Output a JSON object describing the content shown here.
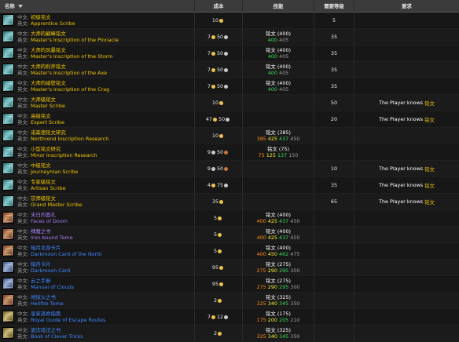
{
  "headers": {
    "name": "名称",
    "cost": "成本",
    "skill": "技能",
    "level": "需要等级",
    "requirements": "要求"
  },
  "labels": {
    "cn": "中文:",
    "en": "英文:"
  },
  "rows": [
    {
      "icon": "scroll-icon",
      "cn": "初级铭文",
      "en": "Apprentice Scribe",
      "color": "yellow",
      "cost": {
        "g": "10"
      },
      "level": "5"
    },
    {
      "icon": "scroll-icon",
      "cn": "大师的巅峰铭文",
      "en": "Master's Inscription of the Pinnacle",
      "color": "yellow",
      "cost": {
        "g": "7",
        "s": "50"
      },
      "skill": {
        "name": "铭文 (400)",
        "vals": [
          "400",
          "405"
        ]
      },
      "level": "35"
    },
    {
      "icon": "scroll-icon",
      "cn": "大师的风暴铭文",
      "en": "Master's Inscription of the Storm",
      "color": "yellow",
      "cost": {
        "g": "7",
        "s": "50"
      },
      "skill": {
        "name": "铭文 (400)",
        "vals": [
          "400",
          "405"
        ]
      },
      "level": "35"
    },
    {
      "icon": "scroll-icon",
      "cn": "大师的利斧铭文",
      "en": "Master's Inscription of the Axe",
      "color": "yellow",
      "cost": {
        "g": "7",
        "s": "50"
      },
      "skill": {
        "name": "铭文 (400)",
        "vals": [
          "400",
          "405"
        ]
      },
      "level": "35"
    },
    {
      "icon": "scroll-icon",
      "cn": "大师的峭壁铭文",
      "en": "Master's Inscription of the Crag",
      "color": "yellow",
      "cost": {
        "g": "7",
        "s": "50"
      },
      "skill": {
        "name": "铭文 (400)",
        "vals": [
          "400",
          "405"
        ]
      },
      "level": "35"
    },
    {
      "icon": "scroll-icon",
      "cn": "大师级铭文",
      "en": "Master Scribe",
      "color": "yellow",
      "cost": {
        "g": "10"
      },
      "level": "50",
      "req": {
        "k": "The Player knows",
        "v": "铭文"
      }
    },
    {
      "icon": "scroll-icon",
      "cn": "高级铭文",
      "en": "Expert Scribe",
      "color": "yellow",
      "cost": {
        "g": "47",
        "s": "50"
      },
      "level": "20",
      "req": {
        "k": "The Player knows",
        "v": "铭文"
      }
    },
    {
      "icon": "scroll-icon",
      "cn": "诺森德铭文研究",
      "en": "Northrend Inscription Research",
      "color": "yellow",
      "cost": {
        "g": "10"
      },
      "skill": {
        "name": "铭文 (385)",
        "vals": [
          "385",
          "425",
          "437",
          "450"
        ]
      }
    },
    {
      "icon": "scroll-icon",
      "cn": "小型铭文研究",
      "en": "Minor Inscription Research",
      "color": "yellow",
      "cost": {
        "s": "9",
        "c": "50"
      },
      "skill": {
        "name": "铭文 (75)",
        "vals": [
          "75",
          "125",
          "137",
          "150"
        ]
      }
    },
    {
      "icon": "scroll-icon",
      "cn": "中级铭文",
      "en": "Journeyman Scribe",
      "color": "yellow",
      "cost": {
        "s": "9",
        "c": "50"
      },
      "level": "10",
      "req": {
        "k": "The Player knows",
        "v": "铭文"
      }
    },
    {
      "icon": "scroll-icon",
      "cn": "专家级铭文",
      "en": "Artisan Scribe",
      "color": "yellow",
      "cost": {
        "g": "4",
        "s": "75"
      },
      "level": "35",
      "req": {
        "k": "The Player knows",
        "v": "铭文"
      }
    },
    {
      "icon": "scroll-icon",
      "cn": "宗师级铭文",
      "en": "Grand Master Scribe",
      "color": "yellow",
      "cost": {
        "g": "35"
      },
      "level": "65",
      "req": {
        "k": "The Player knows",
        "v": "铭文"
      }
    },
    {
      "icon": "book-icon",
      "iconStyle": "book",
      "cn": "末日的面孔",
      "en": "Faces of Doom",
      "color": "purple",
      "cost": {
        "g": "5"
      },
      "skill": {
        "name": "铭文 (400)",
        "vals": [
          "400",
          "425",
          "437",
          "450"
        ]
      }
    },
    {
      "icon": "book-icon",
      "iconStyle": "book",
      "cn": "缚魔之书",
      "en": "Iron-bound Tome",
      "color": "purple",
      "cost": {
        "g": "5"
      },
      "skill": {
        "name": "铭文 (400)",
        "vals": [
          "400",
          "425",
          "437",
          "450"
        ]
      }
    },
    {
      "icon": "card-icon",
      "iconStyle": "book",
      "cn": "暗月北部卡片",
      "en": "Darkmoon Card of the North",
      "color": "blue",
      "cost": {
        "g": "5"
      },
      "skill": {
        "name": "铭文 (400)",
        "vals": [
          "400",
          "450",
          "462",
          "475"
        ]
      }
    },
    {
      "icon": "card-icon",
      "iconStyle": "book2",
      "cn": "暗月卡片",
      "en": "Darkmoon Card",
      "color": "blue",
      "cost": {
        "g": "95"
      },
      "skill": {
        "name": "铭文 (275)",
        "vals": [
          "275",
          "290",
          "295",
          "300"
        ]
      }
    },
    {
      "icon": "book-icon",
      "iconStyle": "book2",
      "cn": "云之手册",
      "en": "Manual of Clouds",
      "color": "blue",
      "cost": {
        "g": "95"
      },
      "skill": {
        "name": "铭文 (275)",
        "vals": [
          "275",
          "290",
          "295",
          "300"
        ]
      }
    },
    {
      "icon": "book-icon",
      "iconStyle": "book",
      "cn": "地狱火之书",
      "en": "Hellfire Tome",
      "color": "blue",
      "cost": {
        "g": "2"
      },
      "skill": {
        "name": "铭文 (325)",
        "vals": [
          "325",
          "340",
          "345",
          "350"
        ]
      }
    },
    {
      "icon": "book-icon",
      "iconStyle": "book3",
      "cn": "皇家逃命指南",
      "en": "Royal Guide of Escape Routes",
      "color": "blue",
      "cost": {
        "g": "7",
        "s": "12"
      },
      "skill": {
        "name": "铭文 (175)",
        "vals": [
          "175",
          "200",
          "205",
          "210"
        ]
      }
    },
    {
      "icon": "book-icon",
      "iconStyle": "book3",
      "cn": "诡诈戏法之书",
      "en": "Book of Clever Tricks",
      "color": "blue",
      "cost": {
        "g": "2"
      },
      "skill": {
        "name": "铭文 (325)",
        "vals": [
          "325",
          "340",
          "345",
          "350"
        ]
      }
    }
  ]
}
